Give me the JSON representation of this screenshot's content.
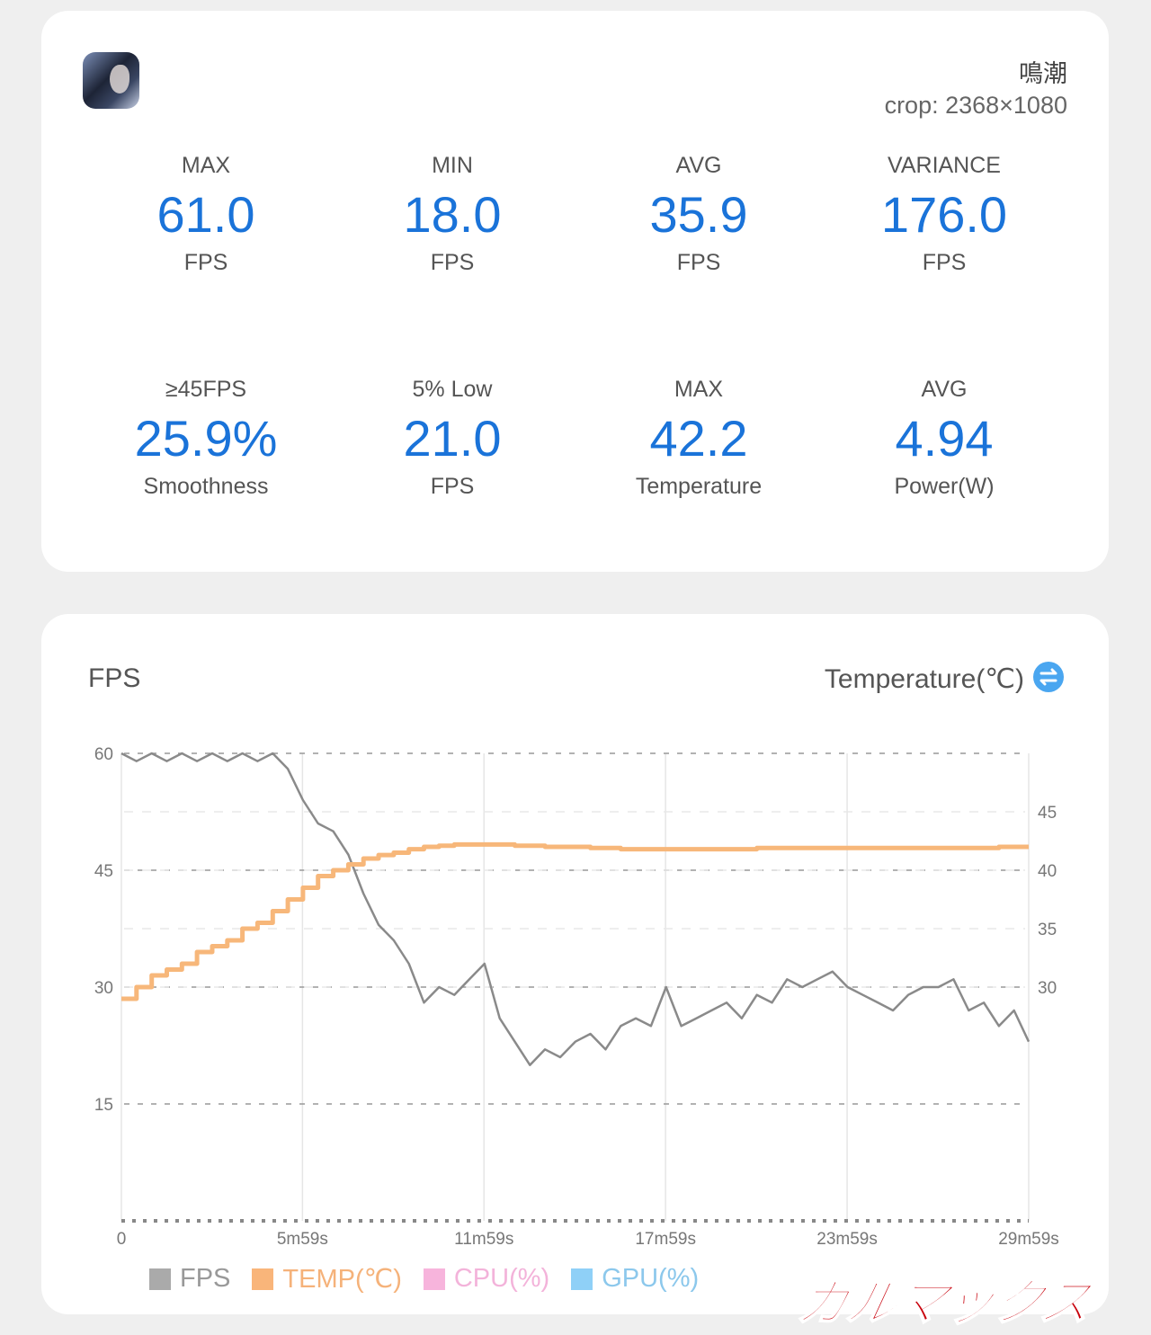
{
  "header": {
    "game_name": "鳴潮",
    "crop": "crop: 2368×1080",
    "app_icon": "game-app-icon"
  },
  "stats": [
    {
      "label": "MAX",
      "value": "61.0",
      "unit": "FPS"
    },
    {
      "label": "MIN",
      "value": "18.0",
      "unit": "FPS"
    },
    {
      "label": "AVG",
      "value": "35.9",
      "unit": "FPS"
    },
    {
      "label": "VARIANCE",
      "value": "176.0",
      "unit": "FPS"
    },
    {
      "label": "≥45FPS",
      "value": "25.9%",
      "unit": "Smoothness"
    },
    {
      "label": "5% Low",
      "value": "21.0",
      "unit": "FPS"
    },
    {
      "label": "MAX",
      "value": "42.2",
      "unit": "Temperature"
    },
    {
      "label": "AVG",
      "value": "4.94",
      "unit": "Power(W)"
    }
  ],
  "colors": {
    "accent": "#1a73d9",
    "fps": "#999999",
    "temp": "#f7b77a",
    "cpu": "#f7b4dc",
    "gpu": "#8fd0f7",
    "toggle": "#4aa6f0"
  },
  "watermark": "ガルマックス",
  "chart_data": {
    "type": "line",
    "title": "FPS",
    "ylabel_left": "FPS",
    "ylabel_right": "Temperature(℃)",
    "toggle_icon": "swap-axis-icon",
    "ylim_left": [
      0,
      60
    ],
    "ylim_right": [
      10,
      50
    ],
    "yticks_left": [
      "60",
      "45",
      "30",
      "15"
    ],
    "yticks_right": [
      "45",
      "40",
      "35",
      "30"
    ],
    "xlim_seconds": [
      0,
      1799
    ],
    "xticks": [
      {
        "t": 0,
        "label": "0"
      },
      {
        "t": 359,
        "label": "5m59s"
      },
      {
        "t": 719,
        "label": "11m59s"
      },
      {
        "t": 1079,
        "label": "17m59s"
      },
      {
        "t": 1439,
        "label": "23m59s"
      },
      {
        "t": 1799,
        "label": "29m59s"
      }
    ],
    "grid": true,
    "legend_position": "bottom",
    "legend": [
      "FPS",
      "TEMP(℃)",
      "CPU(%)",
      "GPU(%)"
    ],
    "t": [
      0,
      30,
      60,
      90,
      120,
      150,
      180,
      210,
      240,
      270,
      300,
      330,
      360,
      390,
      420,
      450,
      480,
      510,
      540,
      570,
      600,
      630,
      660,
      690,
      720,
      750,
      780,
      810,
      840,
      870,
      900,
      930,
      960,
      990,
      1020,
      1050,
      1080,
      1110,
      1140,
      1170,
      1200,
      1230,
      1260,
      1290,
      1320,
      1350,
      1380,
      1410,
      1440,
      1470,
      1500,
      1530,
      1560,
      1590,
      1620,
      1650,
      1680,
      1710,
      1740,
      1770,
      1799
    ],
    "series": [
      {
        "name": "FPS",
        "axis": "left",
        "values": [
          60,
          59,
          60,
          59,
          60,
          59,
          60,
          59,
          60,
          59,
          60,
          58,
          54,
          51,
          50,
          47,
          42,
          38,
          36,
          33,
          28,
          30,
          29,
          31,
          33,
          26,
          23,
          20,
          22,
          21,
          23,
          24,
          22,
          25,
          26,
          25,
          30,
          25,
          26,
          27,
          28,
          26,
          29,
          28,
          31,
          30,
          31,
          32,
          30,
          29,
          28,
          27,
          29,
          30,
          30,
          31,
          27,
          28,
          25,
          27,
          23
        ]
      },
      {
        "name": "TEMP(℃)",
        "axis": "right",
        "values": [
          29,
          30,
          31,
          31.5,
          32,
          33,
          33.5,
          34,
          35,
          35.5,
          36.5,
          37.5,
          38.5,
          39.5,
          40,
          40.5,
          41,
          41.3,
          41.5,
          41.8,
          42,
          42.1,
          42.2,
          42.2,
          42.2,
          42.2,
          42.1,
          42.1,
          42,
          42,
          42,
          41.9,
          41.9,
          41.8,
          41.8,
          41.8,
          41.8,
          41.8,
          41.8,
          41.8,
          41.8,
          41.8,
          41.9,
          41.9,
          41.9,
          41.9,
          41.9,
          41.9,
          41.9,
          41.9,
          41.9,
          41.9,
          41.9,
          41.9,
          41.9,
          41.9,
          41.9,
          41.9,
          42,
          42,
          42
        ]
      }
    ]
  }
}
